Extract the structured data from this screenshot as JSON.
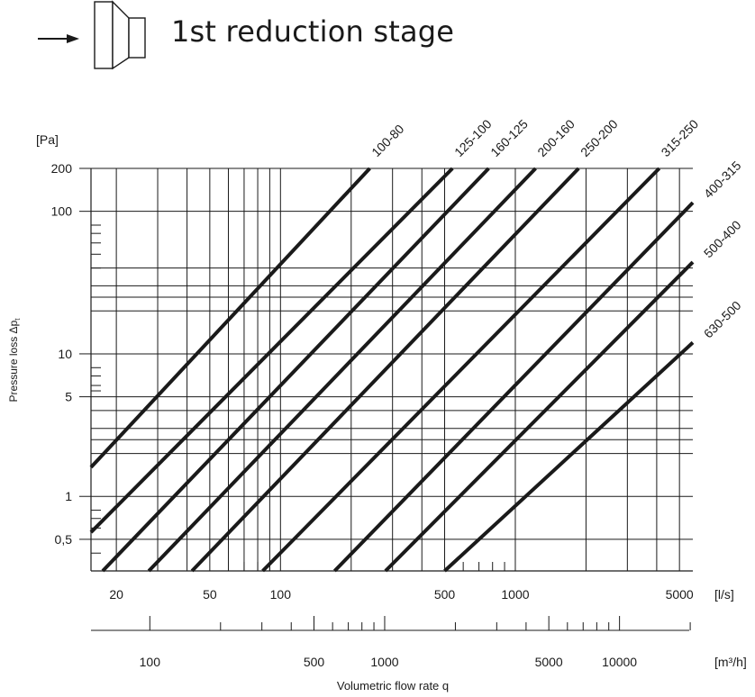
{
  "header": {
    "title": "1st reduction stage",
    "arrow_icon": "arrow-right-icon",
    "reducer_icon": "duct-reducer-icon"
  },
  "chart_data": {
    "type": "line",
    "title": "1st reduction stage",
    "xlabel": "Volumetric flow rate q",
    "ylabel": "Pressure loss Δp",
    "ylabel_subscript": "t",
    "x_unit": "[l/s]",
    "x2_unit": "[m³/h]",
    "y_unit": "[Pa]",
    "x_scale": "log",
    "y_scale": "log",
    "xlim": [
      15.6,
      5700
    ],
    "ylim": [
      0.3,
      200
    ],
    "x_ticks": [
      20,
      50,
      100,
      500,
      1000,
      5000
    ],
    "x_tick_labels": [
      "20",
      "50",
      "100",
      "500",
      "1000",
      "5000"
    ],
    "x2_ticks": [
      100,
      500,
      1000,
      5000,
      10000
    ],
    "x2_tick_labels": [
      "100",
      "500",
      "1000",
      "5000",
      "10000"
    ],
    "y_ticks": [
      0.5,
      1,
      5,
      10,
      100,
      200
    ],
    "y_tick_labels": [
      "0,5",
      "1",
      "5",
      "10",
      "100",
      "200"
    ],
    "grid": true,
    "line_color": "#1a1a1a",
    "series": [
      {
        "name": "100-80",
        "x": [
          15.6,
          240
        ],
        "y": [
          1.6,
          200
        ]
      },
      {
        "name": "125-100",
        "x": [
          15.6,
          540
        ],
        "y": [
          0.56,
          200
        ]
      },
      {
        "name": "160-125",
        "x": [
          17.5,
          770
        ],
        "y": [
          0.3,
          200
        ]
      },
      {
        "name": "200-160",
        "x": [
          27.5,
          1220
        ],
        "y": [
          0.3,
          200
        ]
      },
      {
        "name": "250-200",
        "x": [
          42,
          1860
        ],
        "y": [
          0.3,
          200
        ]
      },
      {
        "name": "315-250",
        "x": [
          84,
          4100
        ],
        "y": [
          0.3,
          200
        ]
      },
      {
        "name": "400-315",
        "x": [
          170,
          5700
        ],
        "y": [
          0.3,
          115
        ]
      },
      {
        "name": "500-400",
        "x": [
          280,
          5700
        ],
        "y": [
          0.3,
          44
        ]
      },
      {
        "name": "630-500",
        "x": [
          500,
          5700
        ],
        "y": [
          0.3,
          12
        ]
      }
    ]
  }
}
